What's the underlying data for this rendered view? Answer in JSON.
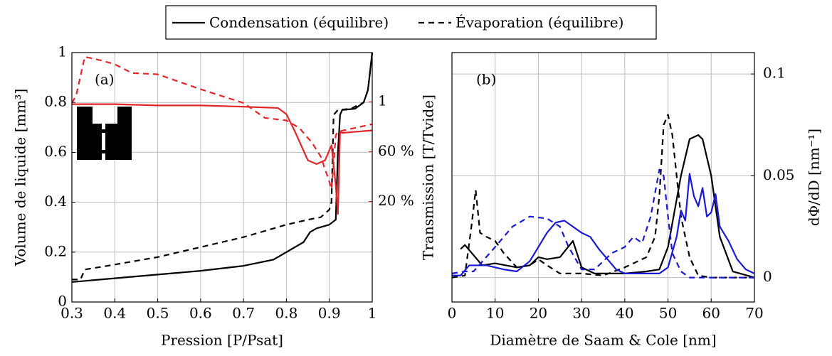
{
  "chart_data": [
    {
      "type": "line",
      "annotation": "(a)",
      "xlabel": "Pression [P/Psat]",
      "ylabel": "Volume de liquide [mm³]",
      "y2label": "Transmission [T/Tvide]",
      "xlim": [
        0.3,
        1
      ],
      "xticks": [
        0.3,
        0.4,
        0.5,
        0.6,
        0.7,
        0.8,
        0.9,
        1
      ],
      "ylim": [
        0,
        1
      ],
      "yticks": [
        0,
        0.2,
        0.4,
        0.6,
        0.8,
        1
      ],
      "y2lim": [
        -0.606,
        1.394
      ],
      "y2ticks": [
        {
          "value": 0.2,
          "label": "20 %"
        },
        {
          "value": 0.6,
          "label": "60 %"
        },
        1
      ],
      "y2color": "#e3262a",
      "grid": true,
      "series": [
        {
          "name": "Condensation (équilibre)",
          "color": "#000000",
          "style": "solid",
          "x": [
            0.3,
            0.4,
            0.5,
            0.6,
            0.7,
            0.77,
            0.8,
            0.84,
            0.855,
            0.87,
            0.9,
            0.915,
            0.92,
            0.925,
            0.93,
            0.96,
            0.98,
            0.99,
            1.0
          ],
          "values": [
            0.08,
            0.095,
            0.11,
            0.125,
            0.145,
            0.17,
            0.2,
            0.24,
            0.28,
            0.295,
            0.31,
            0.33,
            0.6,
            0.75,
            0.77,
            0.775,
            0.8,
            0.85,
            1.0
          ]
        },
        {
          "name": "Évaporation (équilibre)",
          "color": "#000000",
          "style": "dashed",
          "x": [
            0.3,
            0.32,
            0.33,
            0.4,
            0.5,
            0.6,
            0.7,
            0.8,
            0.85,
            0.88,
            0.9,
            0.905,
            0.91,
            0.92,
            0.95,
            0.98,
            0.99,
            1.0
          ],
          "values": [
            0.09,
            0.09,
            0.13,
            0.15,
            0.18,
            0.22,
            0.26,
            0.31,
            0.33,
            0.34,
            0.37,
            0.4,
            0.75,
            0.77,
            0.775,
            0.8,
            0.85,
            1.0
          ]
        },
        {
          "color": "#e3262a",
          "style": "solid",
          "axis": "y2",
          "x": [
            0.3,
            0.4,
            0.5,
            0.6,
            0.7,
            0.78,
            0.8,
            0.82,
            0.85,
            0.87,
            0.89,
            0.905,
            0.915,
            0.92,
            0.925,
            0.93,
            1.0
          ],
          "values": [
            0.98,
            0.98,
            0.97,
            0.97,
            0.96,
            0.95,
            0.9,
            0.76,
            0.53,
            0.5,
            0.53,
            0.65,
            0.33,
            0.1,
            0.76,
            0.75,
            0.77
          ]
        },
        {
          "color": "#e3262a",
          "style": "dashed",
          "axis": "y2",
          "x": [
            0.3,
            0.31,
            0.33,
            0.37,
            0.4,
            0.44,
            0.5,
            0.55,
            0.6,
            0.7,
            0.75,
            0.8,
            0.83,
            0.86,
            0.88,
            0.9,
            0.905,
            0.91,
            0.915,
            0.92,
            1.0
          ],
          "values": [
            0.99,
            1.05,
            1.36,
            1.33,
            1.3,
            1.23,
            1.22,
            1.16,
            1.1,
            0.99,
            0.87,
            0.85,
            0.79,
            0.67,
            0.56,
            0.36,
            0.3,
            0.5,
            0.73,
            0.76,
            0.82
          ]
        }
      ]
    },
    {
      "type": "line",
      "annotation": "(b)",
      "xlabel": "Diamètre de Saam & Cole [nm]",
      "ylabel": "dΦ/dD [nm⁻¹]",
      "xlim": [
        0,
        70
      ],
      "xticks": [
        0,
        10,
        20,
        30,
        40,
        50,
        60,
        70
      ],
      "ylim": [
        -0.012,
        0.1105
      ],
      "yticks": [
        0,
        0.05,
        0.1
      ],
      "yaxis_side": "right",
      "grid": true,
      "series": [
        {
          "color": "#000000",
          "style": "solid",
          "x": [
            2,
            3,
            5,
            7,
            10,
            15,
            18,
            20,
            22,
            25,
            28,
            30,
            33,
            40,
            45,
            48,
            50,
            53,
            55,
            57,
            58,
            60,
            62,
            65,
            70
          ],
          "values": [
            0.014,
            0.016,
            0.011,
            0.006,
            0.007,
            0.005,
            0.006,
            0.01,
            0.009,
            0.01,
            0.018,
            0.005,
            0.002,
            0.002,
            0.003,
            0.004,
            0.015,
            0.05,
            0.068,
            0.07,
            0.068,
            0.05,
            0.02,
            0.003,
            0
          ]
        },
        {
          "color": "#000000",
          "style": "dashed",
          "x": [
            0,
            3,
            4.5,
            5.5,
            6.5,
            8,
            10,
            12,
            15,
            18,
            20,
            22,
            25,
            30,
            35,
            40,
            45,
            47,
            48,
            49,
            50,
            51,
            53,
            55,
            57,
            60,
            70
          ],
          "values": [
            0,
            0.001,
            0.025,
            0.043,
            0.022,
            0.02,
            0.018,
            0.012,
            0.005,
            0.006,
            0.009,
            0.006,
            0.002,
            0.002,
            0.001,
            0.005,
            0.01,
            0.02,
            0.04,
            0.075,
            0.08,
            0.07,
            0.03,
            0.01,
            0.001,
            0,
            0
          ]
        },
        {
          "color": "#1a1ad6",
          "style": "solid",
          "x": [
            0,
            2,
            4,
            8,
            12,
            15,
            18,
            20,
            22,
            24,
            26,
            28,
            30,
            32,
            34,
            36,
            38,
            40,
            45,
            48,
            50,
            52,
            53,
            54,
            55,
            56,
            57,
            58,
            59,
            60,
            61,
            62,
            64,
            66,
            68,
            70
          ],
          "values": [
            0.001,
            0.001,
            0.006,
            0.006,
            0.004,
            0.003,
            0.008,
            0.015,
            0.022,
            0.027,
            0.028,
            0.025,
            0.022,
            0.02,
            0.014,
            0.009,
            0.004,
            0.002,
            0.002,
            0.002,
            0.005,
            0.02,
            0.033,
            0.028,
            0.051,
            0.04,
            0.035,
            0.044,
            0.03,
            0.032,
            0.041,
            0.025,
            0.018,
            0.009,
            0.004,
            0.002
          ]
        },
        {
          "color": "#1a1ad6",
          "style": "dashed",
          "x": [
            0,
            3,
            5,
            10,
            14,
            18,
            22,
            25,
            27,
            30,
            33,
            35,
            37,
            40,
            42,
            44,
            46,
            48,
            49,
            50,
            51,
            53,
            55,
            70
          ],
          "values": [
            0.002,
            0.003,
            0.003,
            0.015,
            0.025,
            0.03,
            0.029,
            0.025,
            0.015,
            0.004,
            0.004,
            0.008,
            0.012,
            0.015,
            0.02,
            0.017,
            0.03,
            0.053,
            0.05,
            0.03,
            0.012,
            0.003,
            0,
            0
          ]
        }
      ]
    }
  ]
}
